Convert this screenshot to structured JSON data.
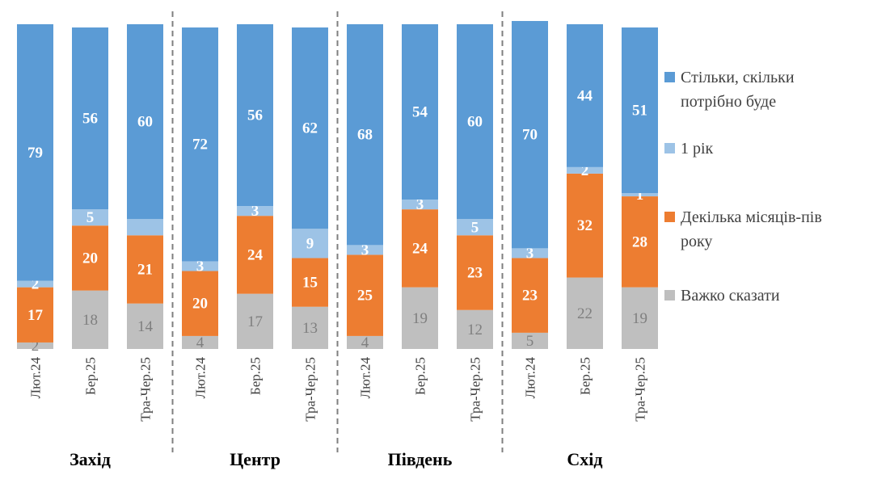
{
  "chart_data": {
    "type": "bar",
    "stacked": true,
    "percent": true,
    "groups": [
      {
        "name": "Захід",
        "categories": [
          "Лют.24",
          "Бер.25",
          "Тра-Чер.25"
        ]
      },
      {
        "name": "Центр",
        "categories": [
          "Лют.24",
          "Бер.25",
          "Тра-Чер.25"
        ]
      },
      {
        "name": "Південь",
        "categories": [
          "Лют.24",
          "Бер.25",
          "Тра-Чер.25"
        ]
      },
      {
        "name": "Схід",
        "categories": [
          "Лют.24",
          "Бер.25",
          "Тра-Чер.25"
        ]
      }
    ],
    "series": [
      {
        "name": "Важко сказати",
        "color": "#bfbfbf",
        "values": [
          2,
          18,
          14,
          4,
          17,
          13,
          4,
          19,
          12,
          5,
          22,
          19
        ],
        "labels": [
          "2",
          "18",
          "14",
          "4",
          "17",
          "13",
          "4",
          "19",
          "12",
          "5",
          "22",
          "19"
        ]
      },
      {
        "name": "Декілька місяців-пів року",
        "color": "#ed7d31",
        "values": [
          17,
          20,
          21,
          20,
          24,
          15,
          25,
          24,
          23,
          23,
          32,
          28
        ],
        "labels": [
          "17",
          "20",
          "21",
          "20",
          "24",
          "15",
          "25",
          "24",
          "23",
          "23",
          "32",
          "28"
        ]
      },
      {
        "name": "1 рік",
        "color": "#9dc3e6",
        "values": [
          2,
          5,
          5,
          3,
          3,
          9,
          3,
          3,
          5,
          3,
          2,
          1
        ],
        "labels": [
          "2",
          "5",
          "",
          "3",
          "3",
          "9",
          "3",
          "3",
          "5",
          "3",
          "2",
          "1"
        ]
      },
      {
        "name": "Стільки, скільки потрібно буде",
        "color": "#5b9bd5",
        "values": [
          79,
          56,
          60,
          72,
          56,
          62,
          68,
          54,
          60,
          70,
          44,
          51
        ],
        "labels": [
          "79",
          "56",
          "60",
          "72",
          "56",
          "62",
          "68",
          "54",
          "60",
          "70",
          "44",
          "51"
        ]
      }
    ],
    "legend": {
      "position": "right",
      "entries": [
        {
          "lines": [
            "Стільки, скільки",
            "потрібно буде"
          ],
          "color": "#5b9bd5"
        },
        {
          "lines": [
            "1 рік"
          ],
          "color": "#9dc3e6"
        },
        {
          "lines": [
            "Декілька місяців-пів",
            "року"
          ],
          "color": "#ed7d31"
        },
        {
          "lines": [
            "Важко сказати"
          ],
          "color": "#bfbfbf"
        }
      ]
    },
    "ylim": [
      0,
      100
    ],
    "grid": false
  }
}
